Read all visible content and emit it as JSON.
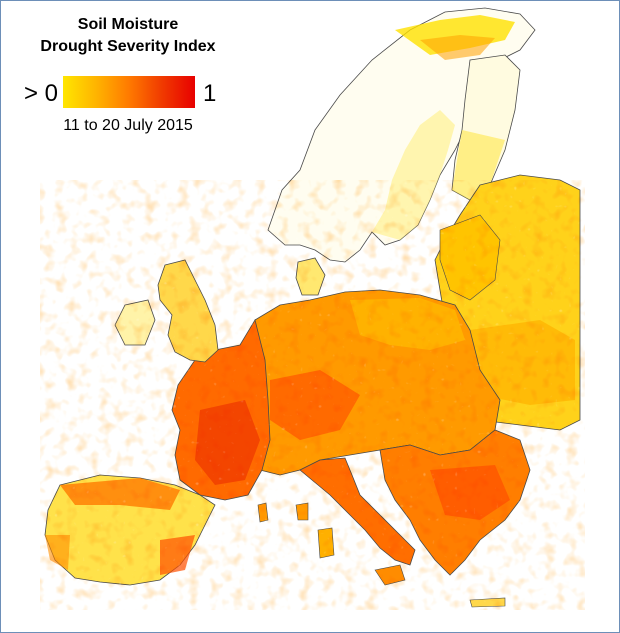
{
  "legend": {
    "title_line1": "Soil Moisture",
    "title_line2": "Drought Severity Index",
    "low_label": "> 0",
    "high_label": "1",
    "period": "11 to 20 July 2015",
    "ramp_colors": [
      "#ffe600",
      "#ffb400",
      "#ff7a00",
      "#f03a00",
      "#e80000"
    ]
  },
  "map": {
    "background": "#ffffff",
    "border_color": "#4a4a4a",
    "frame_color": "#6d8fb8"
  }
}
